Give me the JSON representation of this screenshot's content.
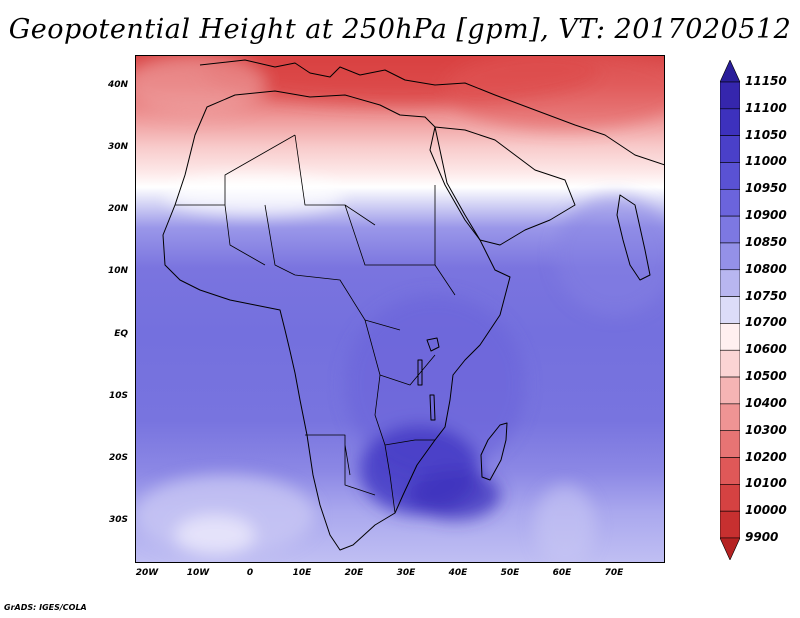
{
  "title": "Geopotential Height at 250hPa [gpm], VT: 2017020512",
  "credit": "GrADS: IGES/COLA",
  "lat_labels": [
    "40N",
    "30N",
    "20N",
    "10N",
    "EQ",
    "10S",
    "20S",
    "30S"
  ],
  "lon_labels": [
    "20W",
    "10W",
    "0",
    "10E",
    "20E",
    "30E",
    "40E",
    "50E",
    "60E",
    "70E"
  ],
  "map": {
    "lon_range": [
      -22,
      80
    ],
    "lat_range": [
      -37,
      45
    ],
    "variable": "Geopotential Height",
    "level": "250hPa",
    "units": "gpm",
    "valid_time": "2017020512"
  },
  "colorbar": {
    "levels": [
      "11150",
      "11100",
      "11050",
      "11000",
      "10950",
      "10900",
      "10850",
      "10800",
      "10750",
      "10700",
      "10600",
      "10500",
      "10400",
      "10300",
      "10200",
      "10100",
      "10000",
      "9900"
    ],
    "colors": [
      "#2a1e9a",
      "#3526ad",
      "#3d31bd",
      "#4a40c9",
      "#5a52d4",
      "#6b64dc",
      "#7d78e2",
      "#9491e8",
      "#b8b6f0",
      "#dcdcf8",
      "#fff0f0",
      "#fbd4d4",
      "#f5b4b4",
      "#ef9494",
      "#e77474",
      "#df5858",
      "#d54242",
      "#c73030",
      "#b52222"
    ]
  }
}
